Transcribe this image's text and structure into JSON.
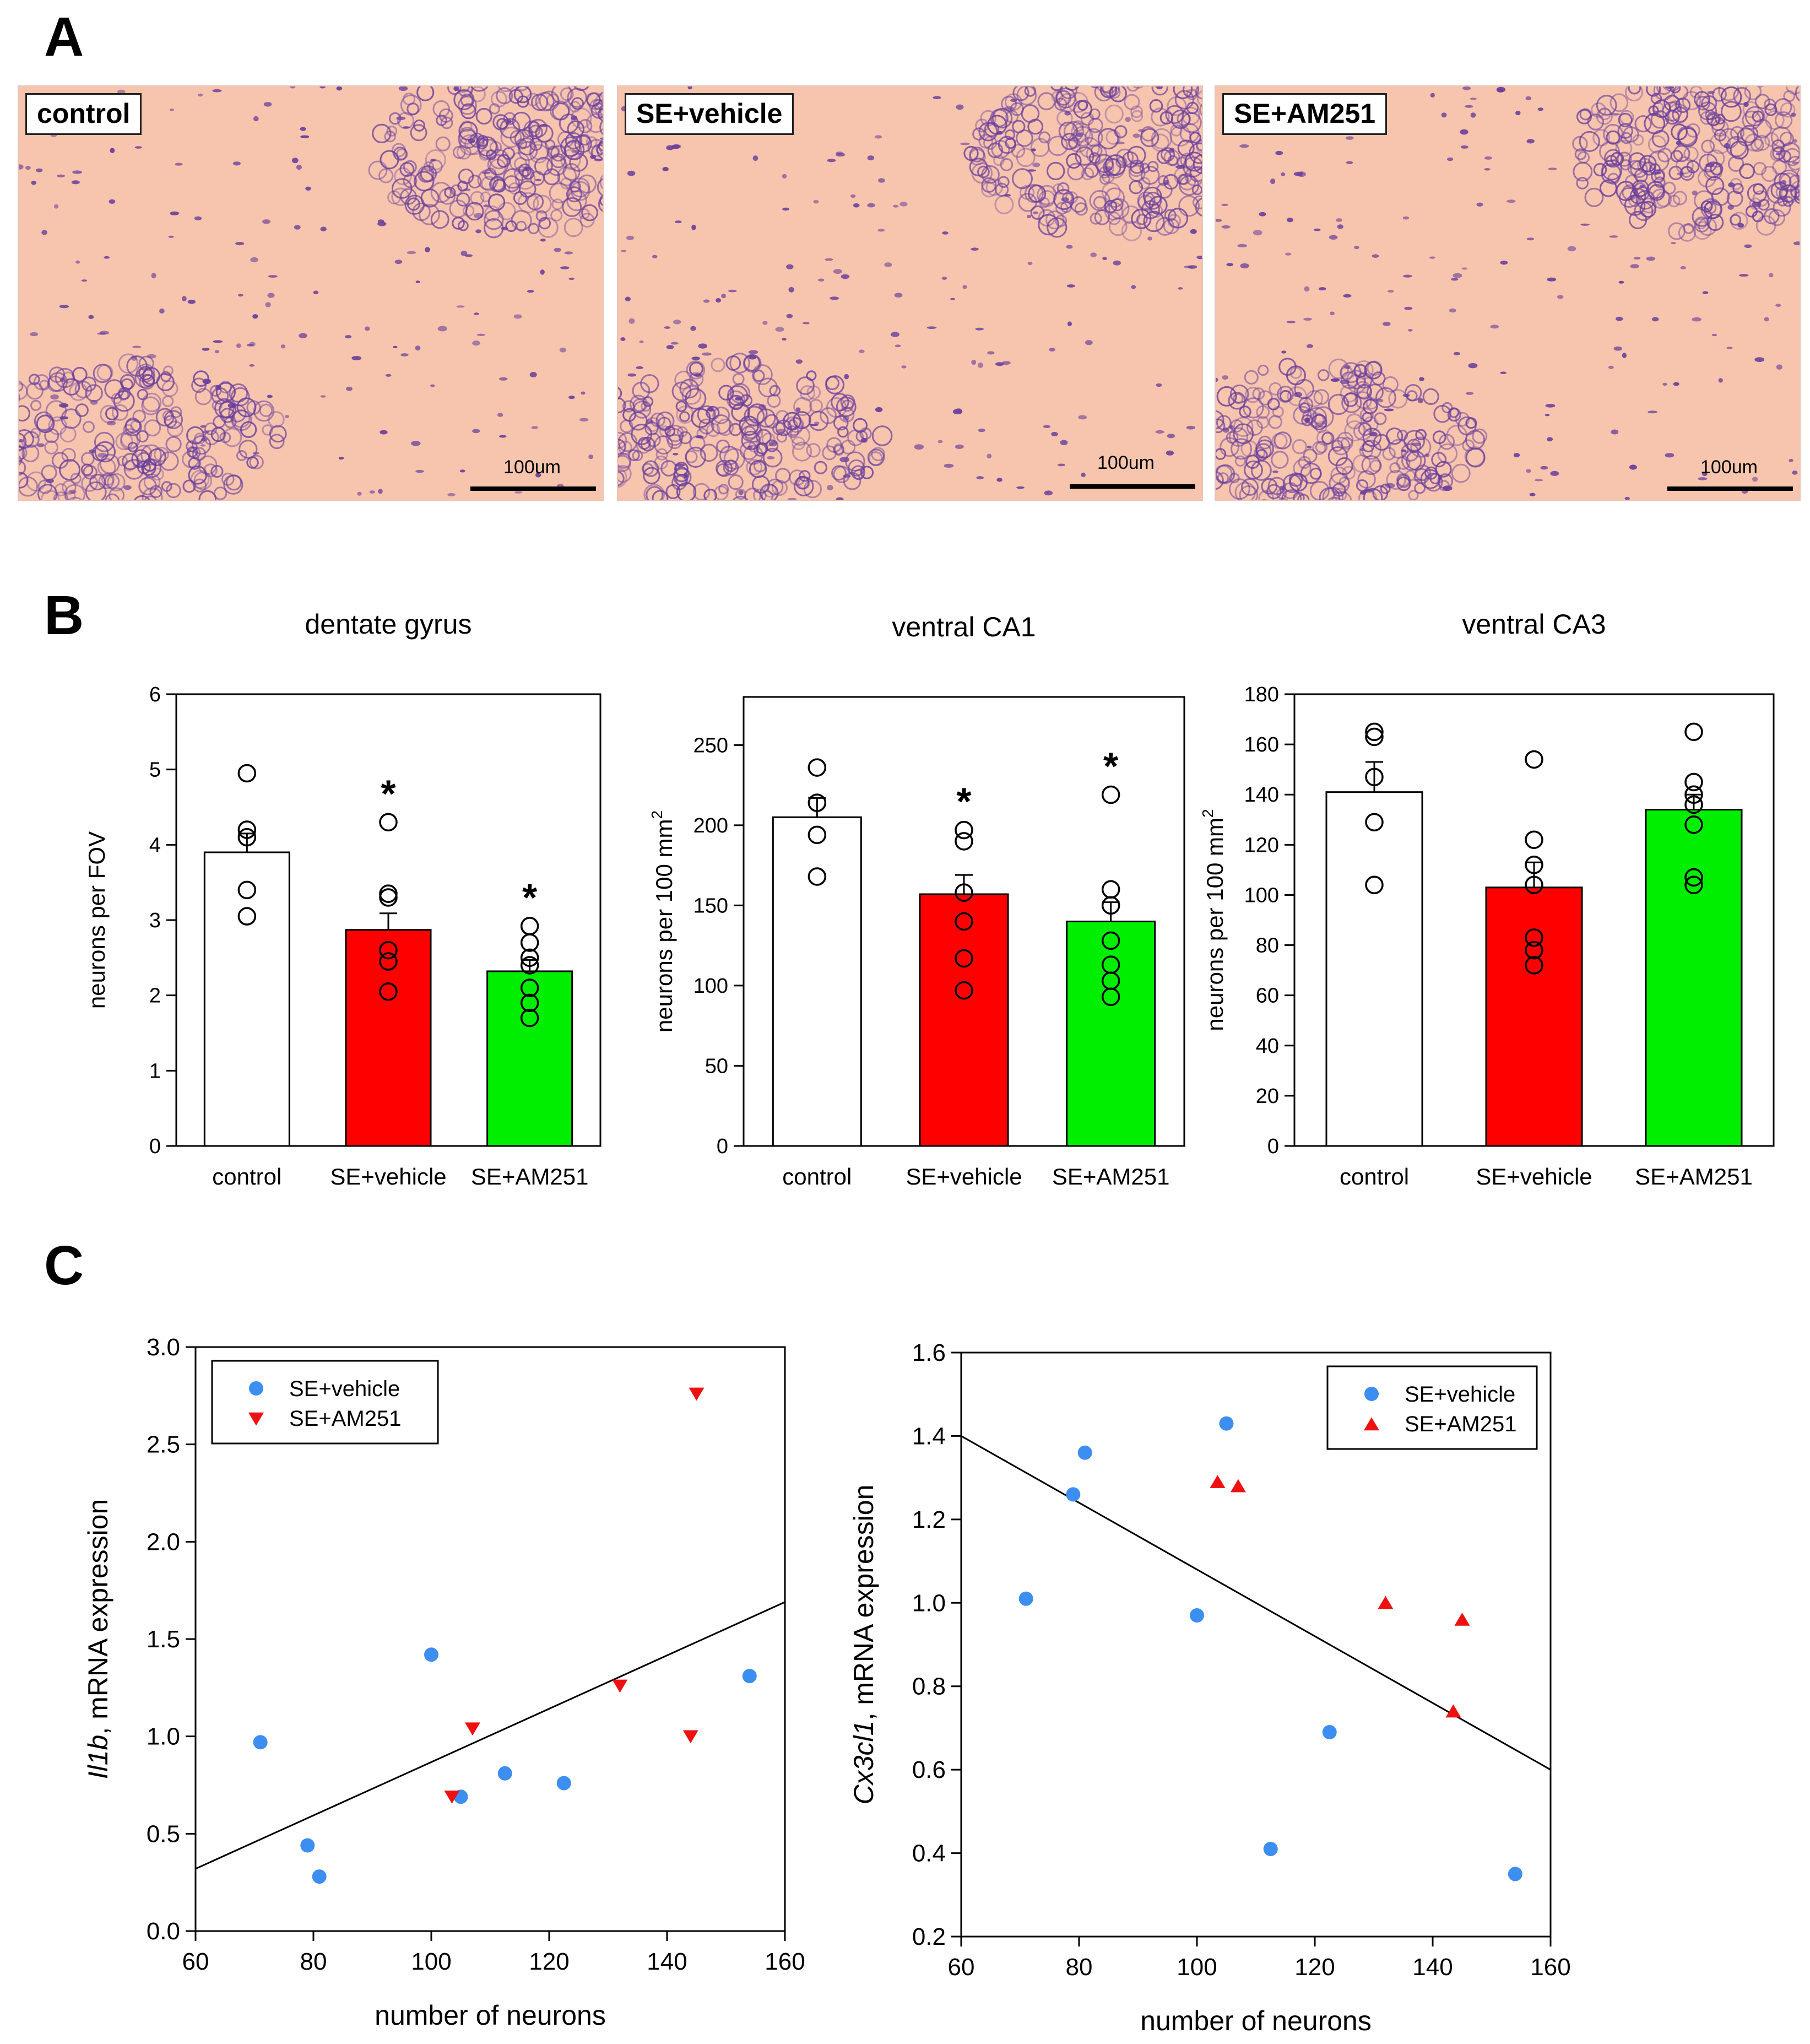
{
  "panels": {
    "a": "A",
    "b": "B",
    "c": "C"
  },
  "micrographs": [
    {
      "label": "control",
      "scale_text": "100um"
    },
    {
      "label": "SE+vehicle",
      "scale_text": "100um"
    },
    {
      "label": "SE+AM251",
      "scale_text": "100um"
    }
  ],
  "colors": {
    "control": "#ffffff",
    "vehicle": "#ff0000",
    "am251": "#00ee00",
    "scatter_vehicle": "#3c8ef0",
    "scatter_am251": "#ee1111",
    "tissue": "#f7c5ad",
    "stain": "#6a3f9c"
  },
  "bar_charts": [
    {
      "type": "bar",
      "title": "dentate gyrus",
      "ylabel": "neurons per FOV",
      "ylabel_sup": "",
      "categories": [
        "control",
        "SE+vehicle",
        "SE+AM251"
      ],
      "values": [
        3.9,
        2.87,
        2.32
      ],
      "errors": [
        0.25,
        0.22,
        0.15
      ],
      "significance": [
        "",
        "*",
        "*"
      ],
      "ylim": [
        0,
        6
      ],
      "ticks": [
        0,
        1,
        2,
        3,
        4,
        5,
        6
      ],
      "points": [
        [
          4.95,
          4.2,
          4.1,
          3.4,
          3.05
        ],
        [
          4.3,
          3.35,
          3.3,
          2.6,
          2.45,
          2.05
        ],
        [
          2.92,
          2.7,
          2.5,
          2.4,
          2.1,
          1.9,
          1.7
        ]
      ]
    },
    {
      "type": "bar",
      "title": "ventral CA1",
      "ylabel": "neurons per 100 mm",
      "ylabel_sup": "2",
      "categories": [
        "control",
        "SE+vehicle",
        "SE+AM251"
      ],
      "values": [
        205,
        157,
        140
      ],
      "errors": [
        12,
        12,
        12
      ],
      "significance": [
        "",
        "*",
        "*"
      ],
      "ylim": [
        0,
        280
      ],
      "ticks": [
        0,
        50,
        100,
        150,
        200,
        250
      ],
      "points": [
        [
          236,
          214,
          194,
          168
        ],
        [
          197,
          190,
          158,
          140,
          117,
          97
        ],
        [
          219,
          160,
          150,
          128,
          113,
          103,
          93
        ]
      ]
    },
    {
      "type": "bar",
      "title": "ventral CA3",
      "ylabel": "neurons per 100 mm",
      "ylabel_sup": "2",
      "categories": [
        "control",
        "SE+vehicle",
        "SE+AM251"
      ],
      "values": [
        141,
        103,
        134
      ],
      "errors": [
        12,
        10,
        6
      ],
      "significance": [
        "",
        "",
        ""
      ],
      "ylim": [
        0,
        180
      ],
      "ticks": [
        0,
        20,
        40,
        60,
        80,
        100,
        120,
        140,
        160,
        180
      ],
      "points": [
        [
          165,
          163,
          147,
          129,
          104
        ],
        [
          154,
          122,
          112,
          104,
          83,
          78,
          72
        ],
        [
          165,
          145,
          140,
          136,
          128,
          107,
          104
        ]
      ]
    }
  ],
  "chart_data": [
    {
      "type": "scatter",
      "xlabel": "number of neurons",
      "ylabel_gene": "Il1b",
      "ylabel_rest": ", mRNA expression",
      "xlim": [
        60,
        160
      ],
      "ylim": [
        0,
        3.0
      ],
      "xticks": [
        60,
        80,
        100,
        120,
        140,
        160
      ],
      "yticks": [
        "0.0",
        "0.5",
        "1.0",
        "1.5",
        "2.0",
        "2.5",
        "3.0"
      ],
      "legend_position": "top-left",
      "am251_marker": "triangle-down",
      "series": [
        {
          "name": "SE+vehicle",
          "x": [
            71,
            79,
            81,
            100,
            105,
            112.5,
            122.5,
            154
          ],
          "y": [
            0.97,
            0.44,
            0.28,
            1.42,
            0.69,
            0.81,
            0.76,
            1.31
          ]
        },
        {
          "name": "SE+AM251",
          "x": [
            103.5,
            107,
            132,
            144,
            145
          ],
          "y": [
            0.69,
            1.04,
            1.26,
            1.0,
            2.76
          ]
        }
      ],
      "fit_line": {
        "x": [
          60,
          160
        ],
        "y": [
          0.32,
          1.69
        ]
      }
    },
    {
      "type": "scatter",
      "xlabel": "number of neurons",
      "ylabel_gene": "Cx3cl1",
      "ylabel_rest": ", mRNA expression",
      "xlim": [
        60,
        160
      ],
      "ylim": [
        0.2,
        1.6
      ],
      "xticks": [
        60,
        80,
        100,
        120,
        140,
        160
      ],
      "yticks": [
        "0.2",
        "0.4",
        "0.6",
        "0.8",
        "1.0",
        "1.2",
        "1.4",
        "1.6"
      ],
      "legend_position": "top-right",
      "am251_marker": "triangle-up",
      "series": [
        {
          "name": "SE+vehicle",
          "x": [
            71,
            79,
            81,
            100,
            105,
            112.5,
            122.5,
            154
          ],
          "y": [
            1.01,
            1.26,
            1.36,
            0.97,
            1.43,
            0.41,
            0.69,
            0.35
          ]
        },
        {
          "name": "SE+AM251",
          "x": [
            103.5,
            107,
            132,
            143.5,
            145
          ],
          "y": [
            1.29,
            1.28,
            1.0,
            0.74,
            0.96
          ]
        }
      ],
      "fit_line": {
        "x": [
          60,
          160
        ],
        "y": [
          1.4,
          0.6
        ]
      }
    }
  ]
}
